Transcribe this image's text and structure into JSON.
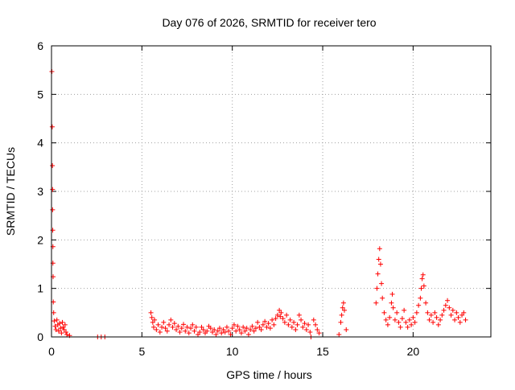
{
  "chart_data": {
    "type": "scatter",
    "title": "Day 076 of 2026, SRMTID for receiver tero",
    "xlabel": "GPS time / hours",
    "ylabel": "SRMTID / TECUs",
    "xlim": [
      0,
      24.3
    ],
    "ylim": [
      0,
      6
    ],
    "x_ticks": [
      0,
      5,
      10,
      15,
      20
    ],
    "y_ticks": [
      0,
      1,
      2,
      3,
      4,
      5,
      6
    ],
    "x_tick_labels": [
      "0",
      "5",
      "10",
      "15",
      "20"
    ],
    "y_tick_labels": [
      "0",
      "1",
      "2",
      "3",
      "4",
      "5",
      "6"
    ],
    "grid": true,
    "marker": "+",
    "series": [
      {
        "name": "SRMTID",
        "color": "#ff0000",
        "points": [
          [
            0.02,
            5.47
          ],
          [
            0.04,
            4.33
          ],
          [
            0.05,
            3.53
          ],
          [
            0.06,
            3.04
          ],
          [
            0.06,
            2.62
          ],
          [
            0.07,
            2.2
          ],
          [
            0.08,
            1.86
          ],
          [
            0.08,
            1.52
          ],
          [
            0.09,
            1.24
          ],
          [
            0.1,
            0.72
          ],
          [
            0.12,
            0.5
          ],
          [
            0.15,
            0.33
          ],
          [
            0.2,
            0.22
          ],
          [
            0.25,
            0.15
          ],
          [
            0.3,
            0.35
          ],
          [
            0.35,
            0.25
          ],
          [
            0.4,
            0.12
          ],
          [
            0.45,
            0.28
          ],
          [
            0.5,
            0.18
          ],
          [
            0.55,
            0.08
          ],
          [
            0.6,
            0.3
          ],
          [
            0.65,
            0.2
          ],
          [
            0.7,
            0.15
          ],
          [
            0.75,
            0.25
          ],
          [
            0.8,
            0.1
          ],
          [
            0.85,
            0.05
          ],
          [
            1.0,
            0.03
          ],
          [
            2.55,
            0.0
          ],
          [
            2.75,
            0.0
          ],
          [
            2.95,
            0.0
          ],
          [
            5.5,
            0.5
          ],
          [
            5.55,
            0.4
          ],
          [
            5.6,
            0.3
          ],
          [
            5.65,
            0.2
          ],
          [
            5.7,
            0.35
          ],
          [
            5.8,
            0.15
          ],
          [
            5.9,
            0.25
          ],
          [
            6.0,
            0.1
          ],
          [
            6.1,
            0.2
          ],
          [
            6.2,
            0.3
          ],
          [
            6.3,
            0.18
          ],
          [
            6.4,
            0.12
          ],
          [
            6.5,
            0.25
          ],
          [
            6.6,
            0.35
          ],
          [
            6.7,
            0.2
          ],
          [
            6.8,
            0.28
          ],
          [
            6.9,
            0.15
          ],
          [
            7.0,
            0.22
          ],
          [
            7.1,
            0.1
          ],
          [
            7.2,
            0.18
          ],
          [
            7.3,
            0.26
          ],
          [
            7.4,
            0.12
          ],
          [
            7.5,
            0.2
          ],
          [
            7.6,
            0.08
          ],
          [
            7.7,
            0.18
          ],
          [
            7.8,
            0.25
          ],
          [
            7.9,
            0.12
          ],
          [
            8.0,
            0.2
          ],
          [
            8.1,
            0.05
          ],
          [
            8.2,
            0.1
          ],
          [
            8.3,
            0.2
          ],
          [
            8.4,
            0.15
          ],
          [
            8.5,
            0.08
          ],
          [
            8.6,
            0.12
          ],
          [
            8.7,
            0.22
          ],
          [
            8.8,
            0.18
          ],
          [
            8.9,
            0.1
          ],
          [
            9.0,
            0.15
          ],
          [
            9.1,
            0.05
          ],
          [
            9.2,
            0.12
          ],
          [
            9.3,
            0.18
          ],
          [
            9.4,
            0.08
          ],
          [
            9.5,
            0.15
          ],
          [
            9.6,
            0.1
          ],
          [
            9.7,
            0.2
          ],
          [
            9.8,
            0.12
          ],
          [
            9.9,
            0.05
          ],
          [
            10.0,
            0.18
          ],
          [
            10.1,
            0.25
          ],
          [
            10.2,
            0.12
          ],
          [
            10.3,
            0.22
          ],
          [
            10.4,
            0.15
          ],
          [
            10.5,
            0.08
          ],
          [
            10.6,
            0.2
          ],
          [
            10.7,
            0.12
          ],
          [
            10.8,
            0.18
          ],
          [
            10.9,
            0.05
          ],
          [
            11.0,
            0.15
          ],
          [
            11.1,
            0.22
          ],
          [
            11.2,
            0.12
          ],
          [
            11.3,
            0.18
          ],
          [
            11.4,
            0.3
          ],
          [
            11.5,
            0.2
          ],
          [
            11.6,
            0.15
          ],
          [
            11.7,
            0.25
          ],
          [
            11.8,
            0.32
          ],
          [
            11.9,
            0.2
          ],
          [
            12.0,
            0.28
          ],
          [
            12.1,
            0.18
          ],
          [
            12.2,
            0.35
          ],
          [
            12.3,
            0.25
          ],
          [
            12.4,
            0.38
          ],
          [
            12.5,
            0.45
          ],
          [
            12.6,
            0.55
          ],
          [
            12.65,
            0.42
          ],
          [
            12.7,
            0.5
          ],
          [
            12.8,
            0.38
          ],
          [
            12.9,
            0.3
          ],
          [
            13.0,
            0.45
          ],
          [
            13.1,
            0.25
          ],
          [
            13.2,
            0.35
          ],
          [
            13.3,
            0.2
          ],
          [
            13.4,
            0.3
          ],
          [
            13.5,
            0.15
          ],
          [
            13.6,
            0.25
          ],
          [
            13.7,
            0.45
          ],
          [
            13.8,
            0.35
          ],
          [
            13.9,
            0.2
          ],
          [
            14.0,
            0.28
          ],
          [
            14.1,
            0.15
          ],
          [
            14.2,
            0.25
          ],
          [
            14.3,
            0.1
          ],
          [
            14.35,
            0.0
          ],
          [
            14.5,
            0.35
          ],
          [
            14.6,
            0.25
          ],
          [
            14.7,
            0.15
          ],
          [
            14.8,
            0.08
          ],
          [
            15.9,
            0.05
          ],
          [
            16.0,
            0.3
          ],
          [
            16.05,
            0.45
          ],
          [
            16.1,
            0.6
          ],
          [
            16.15,
            0.7
          ],
          [
            16.2,
            0.55
          ],
          [
            16.3,
            0.15
          ],
          [
            17.95,
            0.7
          ],
          [
            18.0,
            1.0
          ],
          [
            18.05,
            1.3
          ],
          [
            18.1,
            1.6
          ],
          [
            18.15,
            1.82
          ],
          [
            18.2,
            1.5
          ],
          [
            18.25,
            1.1
          ],
          [
            18.3,
            0.8
          ],
          [
            18.4,
            0.5
          ],
          [
            18.5,
            0.35
          ],
          [
            18.6,
            0.25
          ],
          [
            18.7,
            0.4
          ],
          [
            18.8,
            0.7
          ],
          [
            18.85,
            0.88
          ],
          [
            18.9,
            0.6
          ],
          [
            19.0,
            0.35
          ],
          [
            19.1,
            0.5
          ],
          [
            19.2,
            0.3
          ],
          [
            19.3,
            0.2
          ],
          [
            19.4,
            0.38
          ],
          [
            19.5,
            0.55
          ],
          [
            19.6,
            0.3
          ],
          [
            19.7,
            0.2
          ],
          [
            19.8,
            0.35
          ],
          [
            19.9,
            0.25
          ],
          [
            20.0,
            0.4
          ],
          [
            20.1,
            0.3
          ],
          [
            20.2,
            0.5
          ],
          [
            20.3,
            0.65
          ],
          [
            20.4,
            0.8
          ],
          [
            20.45,
            1.0
          ],
          [
            20.5,
            1.2
          ],
          [
            20.55,
            1.28
          ],
          [
            20.6,
            1.05
          ],
          [
            20.7,
            0.7
          ],
          [
            20.8,
            0.5
          ],
          [
            20.9,
            0.35
          ],
          [
            21.0,
            0.45
          ],
          [
            21.1,
            0.3
          ],
          [
            21.2,
            0.5
          ],
          [
            21.3,
            0.4
          ],
          [
            21.4,
            0.25
          ],
          [
            21.5,
            0.35
          ],
          [
            21.6,
            0.45
          ],
          [
            21.7,
            0.55
          ],
          [
            21.8,
            0.65
          ],
          [
            21.9,
            0.75
          ],
          [
            22.0,
            0.6
          ],
          [
            22.1,
            0.45
          ],
          [
            22.2,
            0.55
          ],
          [
            22.3,
            0.35
          ],
          [
            22.4,
            0.5
          ],
          [
            22.5,
            0.4
          ],
          [
            22.6,
            0.3
          ],
          [
            22.7,
            0.45
          ],
          [
            22.8,
            0.5
          ],
          [
            22.9,
            0.35
          ]
        ]
      }
    ]
  }
}
